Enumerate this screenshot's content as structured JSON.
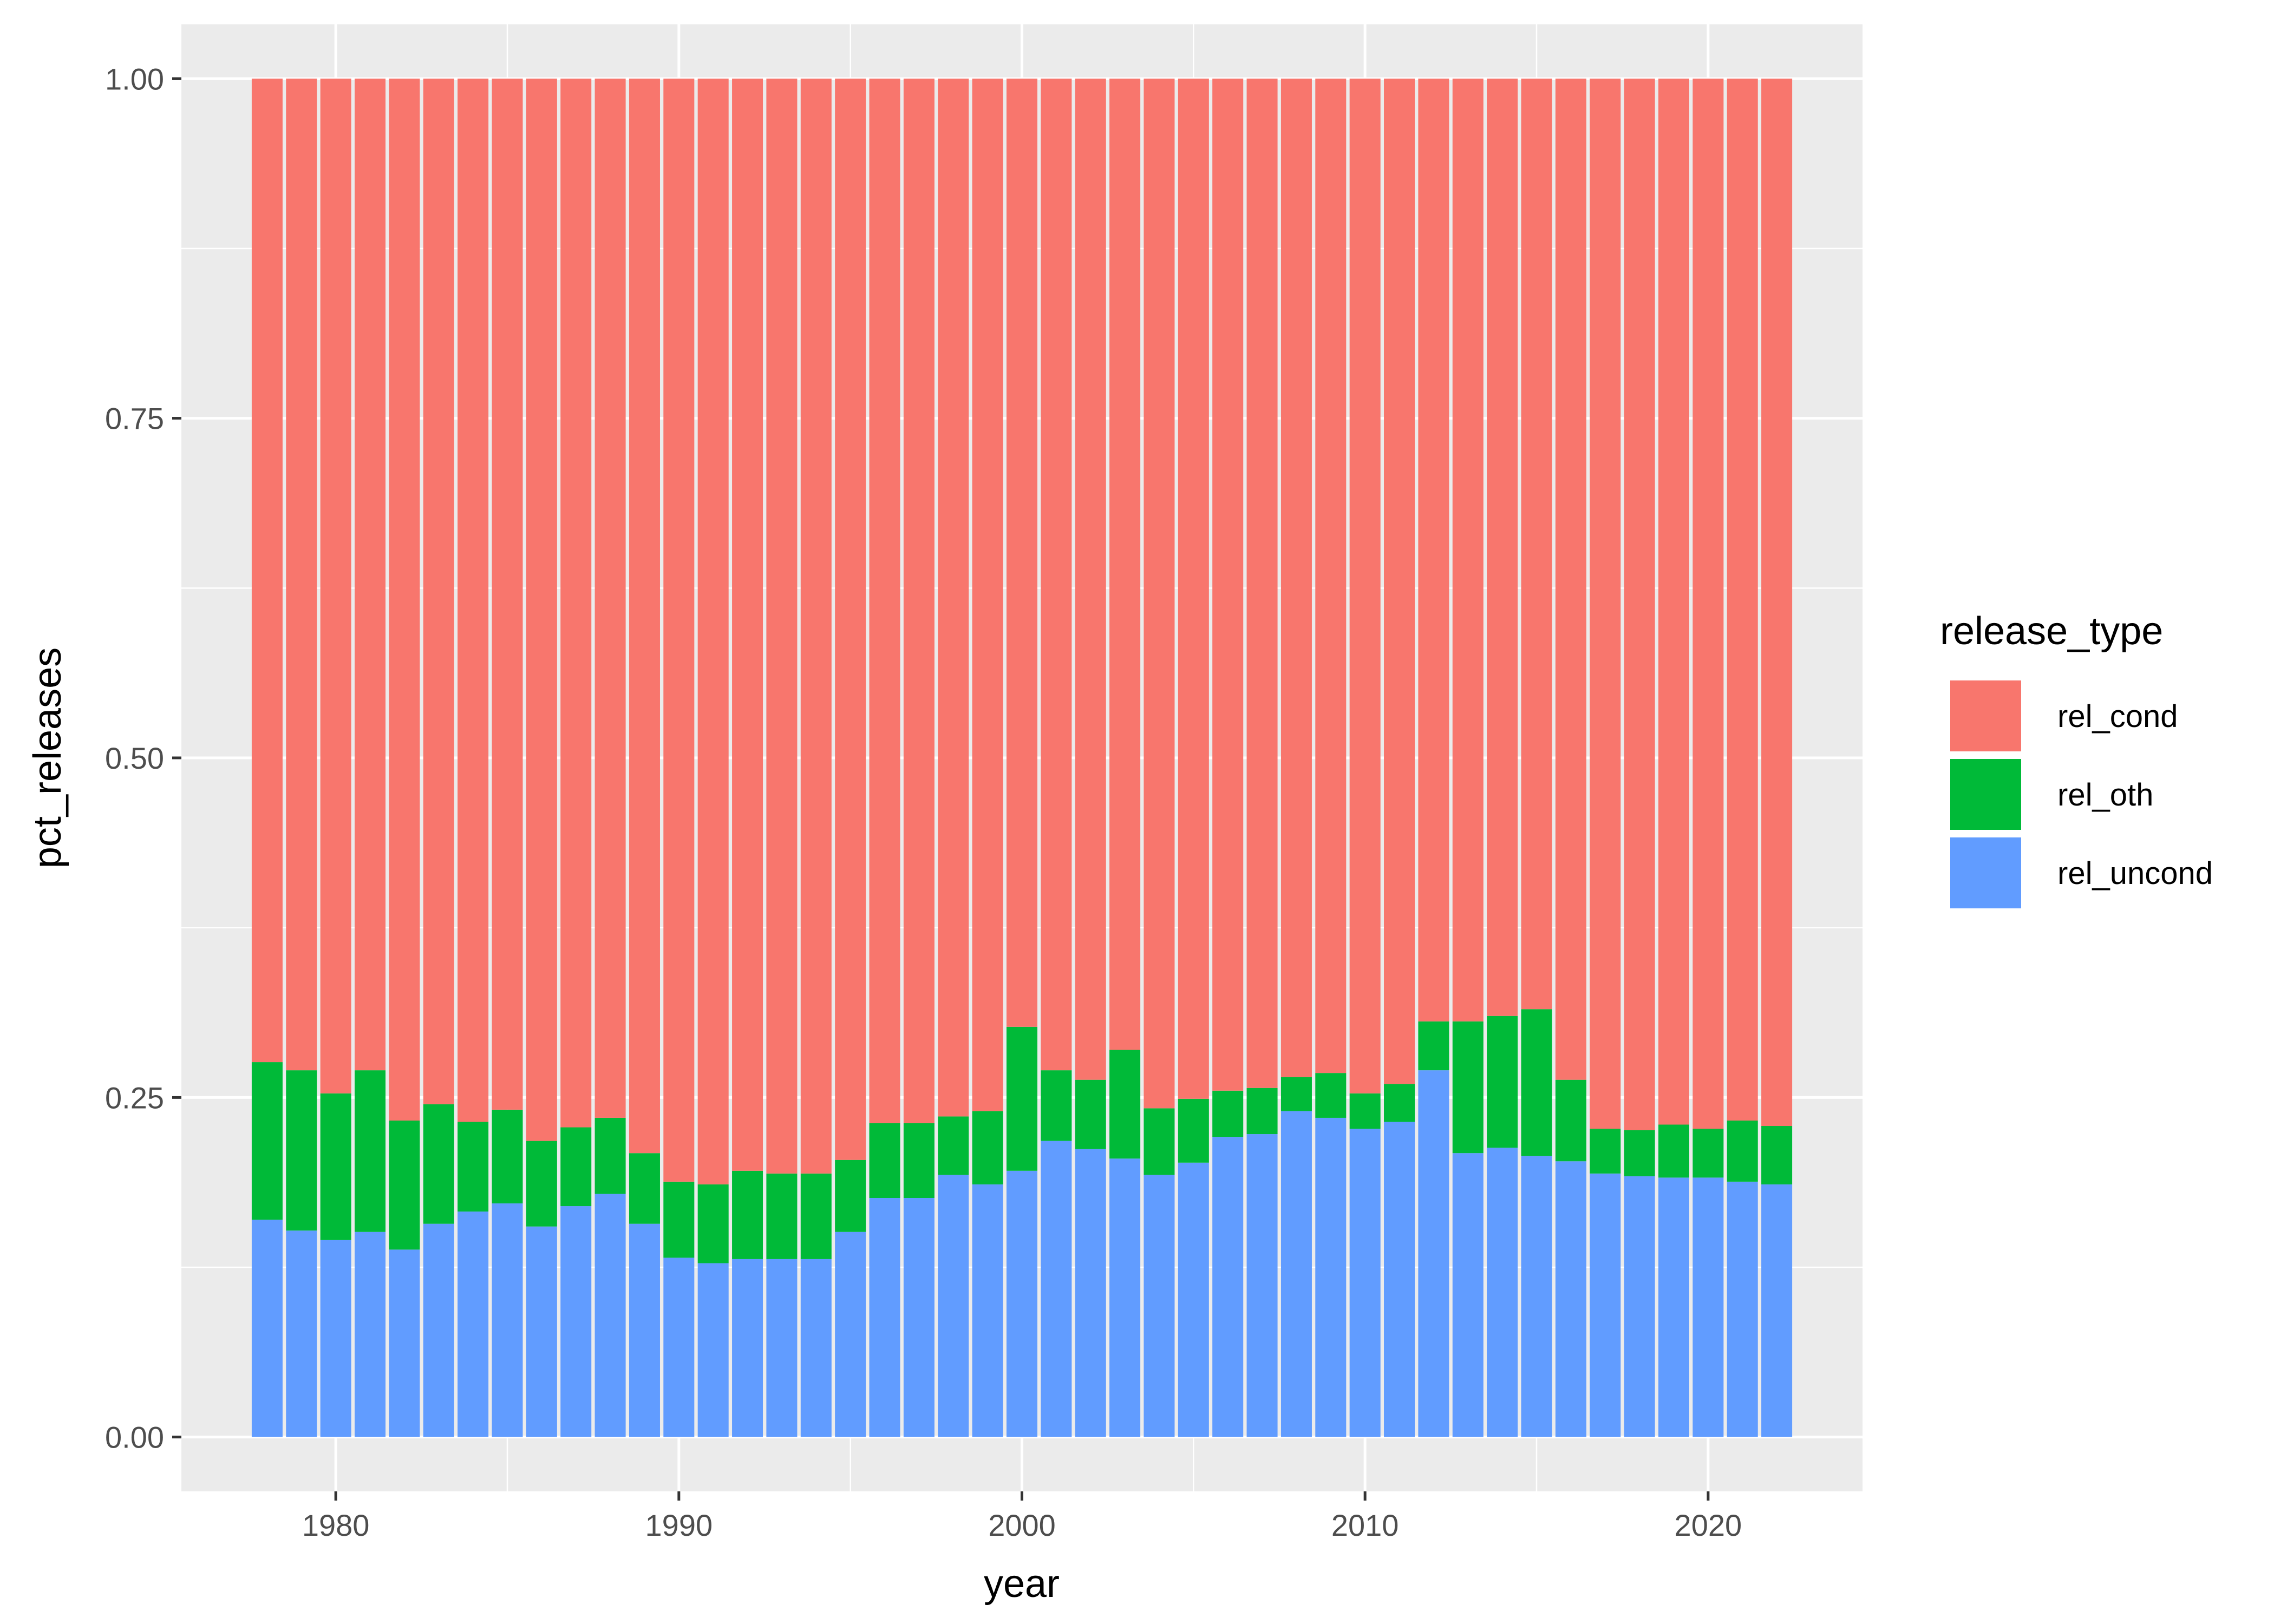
{
  "chart_data": {
    "type": "bar",
    "stacked": true,
    "position": "fill",
    "title": "",
    "xlabel": "year",
    "ylabel": "pct_releases",
    "xlim": [
      1975.5,
      2024.5
    ],
    "ylim": [
      -0.04,
      1.04
    ],
    "x_ticks": [
      1980,
      1990,
      2000,
      2010,
      2020
    ],
    "y_ticks": [
      0,
      0.25,
      0.5,
      0.75,
      1.0
    ],
    "y_tick_labels": [
      "0.00",
      "0.25",
      "0.50",
      "0.75",
      "1.00"
    ],
    "grid": true,
    "legend": {
      "title": "release_type",
      "placement": "right",
      "entries": [
        "rel_cond",
        "rel_oth",
        "rel_uncond"
      ]
    },
    "x": [
      1978,
      1979,
      1980,
      1981,
      1982,
      1983,
      1984,
      1985,
      1986,
      1987,
      1988,
      1989,
      1990,
      1991,
      1992,
      1993,
      1994,
      1995,
      1996,
      1997,
      1998,
      1999,
      2000,
      2001,
      2002,
      2003,
      2004,
      2005,
      2006,
      2007,
      2008,
      2009,
      2010,
      2011,
      2012,
      2013,
      2014,
      2015,
      2016,
      2017,
      2018,
      2019,
      2020,
      2021,
      2022
    ],
    "series": [
      {
        "name": "rel_uncond",
        "color": "#619CFF",
        "values": [
          0.16,
          0.152,
          0.145,
          0.151,
          0.138,
          0.157,
          0.166,
          0.172,
          0.155,
          0.17,
          0.179,
          0.157,
          0.132,
          0.128,
          0.131,
          0.131,
          0.131,
          0.151,
          0.176,
          0.176,
          0.193,
          0.186,
          0.196,
          0.218,
          0.212,
          0.205,
          0.193,
          0.202,
          0.221,
          0.223,
          0.24,
          0.235,
          0.227,
          0.232,
          0.27,
          0.209,
          0.213,
          0.207,
          0.203,
          0.194,
          0.192,
          0.191,
          0.191,
          0.188,
          0.186
        ]
      },
      {
        "name": "rel_oth",
        "color": "#00BA38",
        "values": [
          0.116,
          0.118,
          0.108,
          0.119,
          0.095,
          0.088,
          0.066,
          0.069,
          0.063,
          0.058,
          0.056,
          0.052,
          0.056,
          0.058,
          0.065,
          0.063,
          0.063,
          0.053,
          0.055,
          0.055,
          0.043,
          0.054,
          0.106,
          0.052,
          0.051,
          0.08,
          0.049,
          0.047,
          0.034,
          0.034,
          0.025,
          0.033,
          0.026,
          0.028,
          0.036,
          0.097,
          0.097,
          0.108,
          0.06,
          0.033,
          0.034,
          0.039,
          0.036,
          0.045,
          0.043
        ]
      },
      {
        "name": "rel_cond",
        "color": "#F8766D",
        "values": [
          0.724,
          0.73,
          0.747,
          0.73,
          0.767,
          0.755,
          0.768,
          0.759,
          0.782,
          0.772,
          0.765,
          0.791,
          0.812,
          0.814,
          0.804,
          0.806,
          0.806,
          0.796,
          0.769,
          0.769,
          0.764,
          0.76,
          0.698,
          0.73,
          0.737,
          0.715,
          0.758,
          0.751,
          0.745,
          0.743,
          0.735,
          0.732,
          0.747,
          0.74,
          0.694,
          0.694,
          0.69,
          0.685,
          0.737,
          0.773,
          0.774,
          0.77,
          0.773,
          0.767,
          0.771
        ]
      }
    ]
  }
}
